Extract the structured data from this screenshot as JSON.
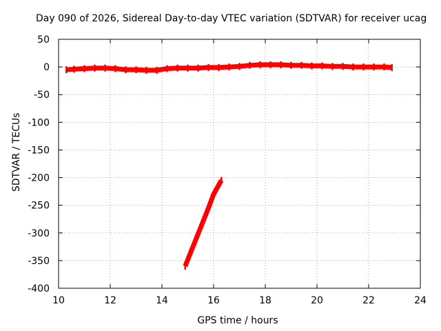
{
  "chart_data": {
    "type": "scatter",
    "title": "Day 090 of 2026, Sidereal Day-to-day VTEC variation (SDTVAR) for receiver ucag",
    "xlabel": "GPS time / hours",
    "ylabel": "SDTVAR / TECUs",
    "xlim": [
      10,
      24
    ],
    "ylim": [
      -400,
      50
    ],
    "xticks": [
      10,
      12,
      14,
      16,
      18,
      20,
      22,
      24
    ],
    "yticks": [
      50,
      0,
      -50,
      -100,
      -150,
      -200,
      -250,
      -300,
      -350,
      -400
    ],
    "grid": true,
    "series": [
      {
        "name": "main-trace",
        "color": "#ff0000",
        "x": [
          10.3,
          10.6,
          11.0,
          11.4,
          11.8,
          12.2,
          12.6,
          13.0,
          13.4,
          13.8,
          14.2,
          14.6,
          15.0,
          15.4,
          15.8,
          16.2,
          16.6,
          17.0,
          17.4,
          17.8,
          18.2,
          18.6,
          19.0,
          19.4,
          19.8,
          20.2,
          20.6,
          21.0,
          21.4,
          21.8,
          22.2,
          22.6,
          22.9
        ],
        "y": [
          -5,
          -4,
          -3,
          -2,
          -2,
          -3,
          -5,
          -5,
          -6,
          -6,
          -3,
          -2,
          -2,
          -2,
          -1,
          -1,
          0,
          1,
          3,
          4,
          4,
          4,
          3,
          3,
          2,
          2,
          1,
          1,
          0,
          0,
          0,
          0,
          -1
        ]
      },
      {
        "name": "steep-segment",
        "color": "#ff0000",
        "x": [
          14.9,
          15.2,
          15.5,
          15.8,
          16.0,
          16.3
        ],
        "y": [
          -360,
          -325,
          -290,
          -255,
          -230,
          -205
        ]
      }
    ]
  }
}
